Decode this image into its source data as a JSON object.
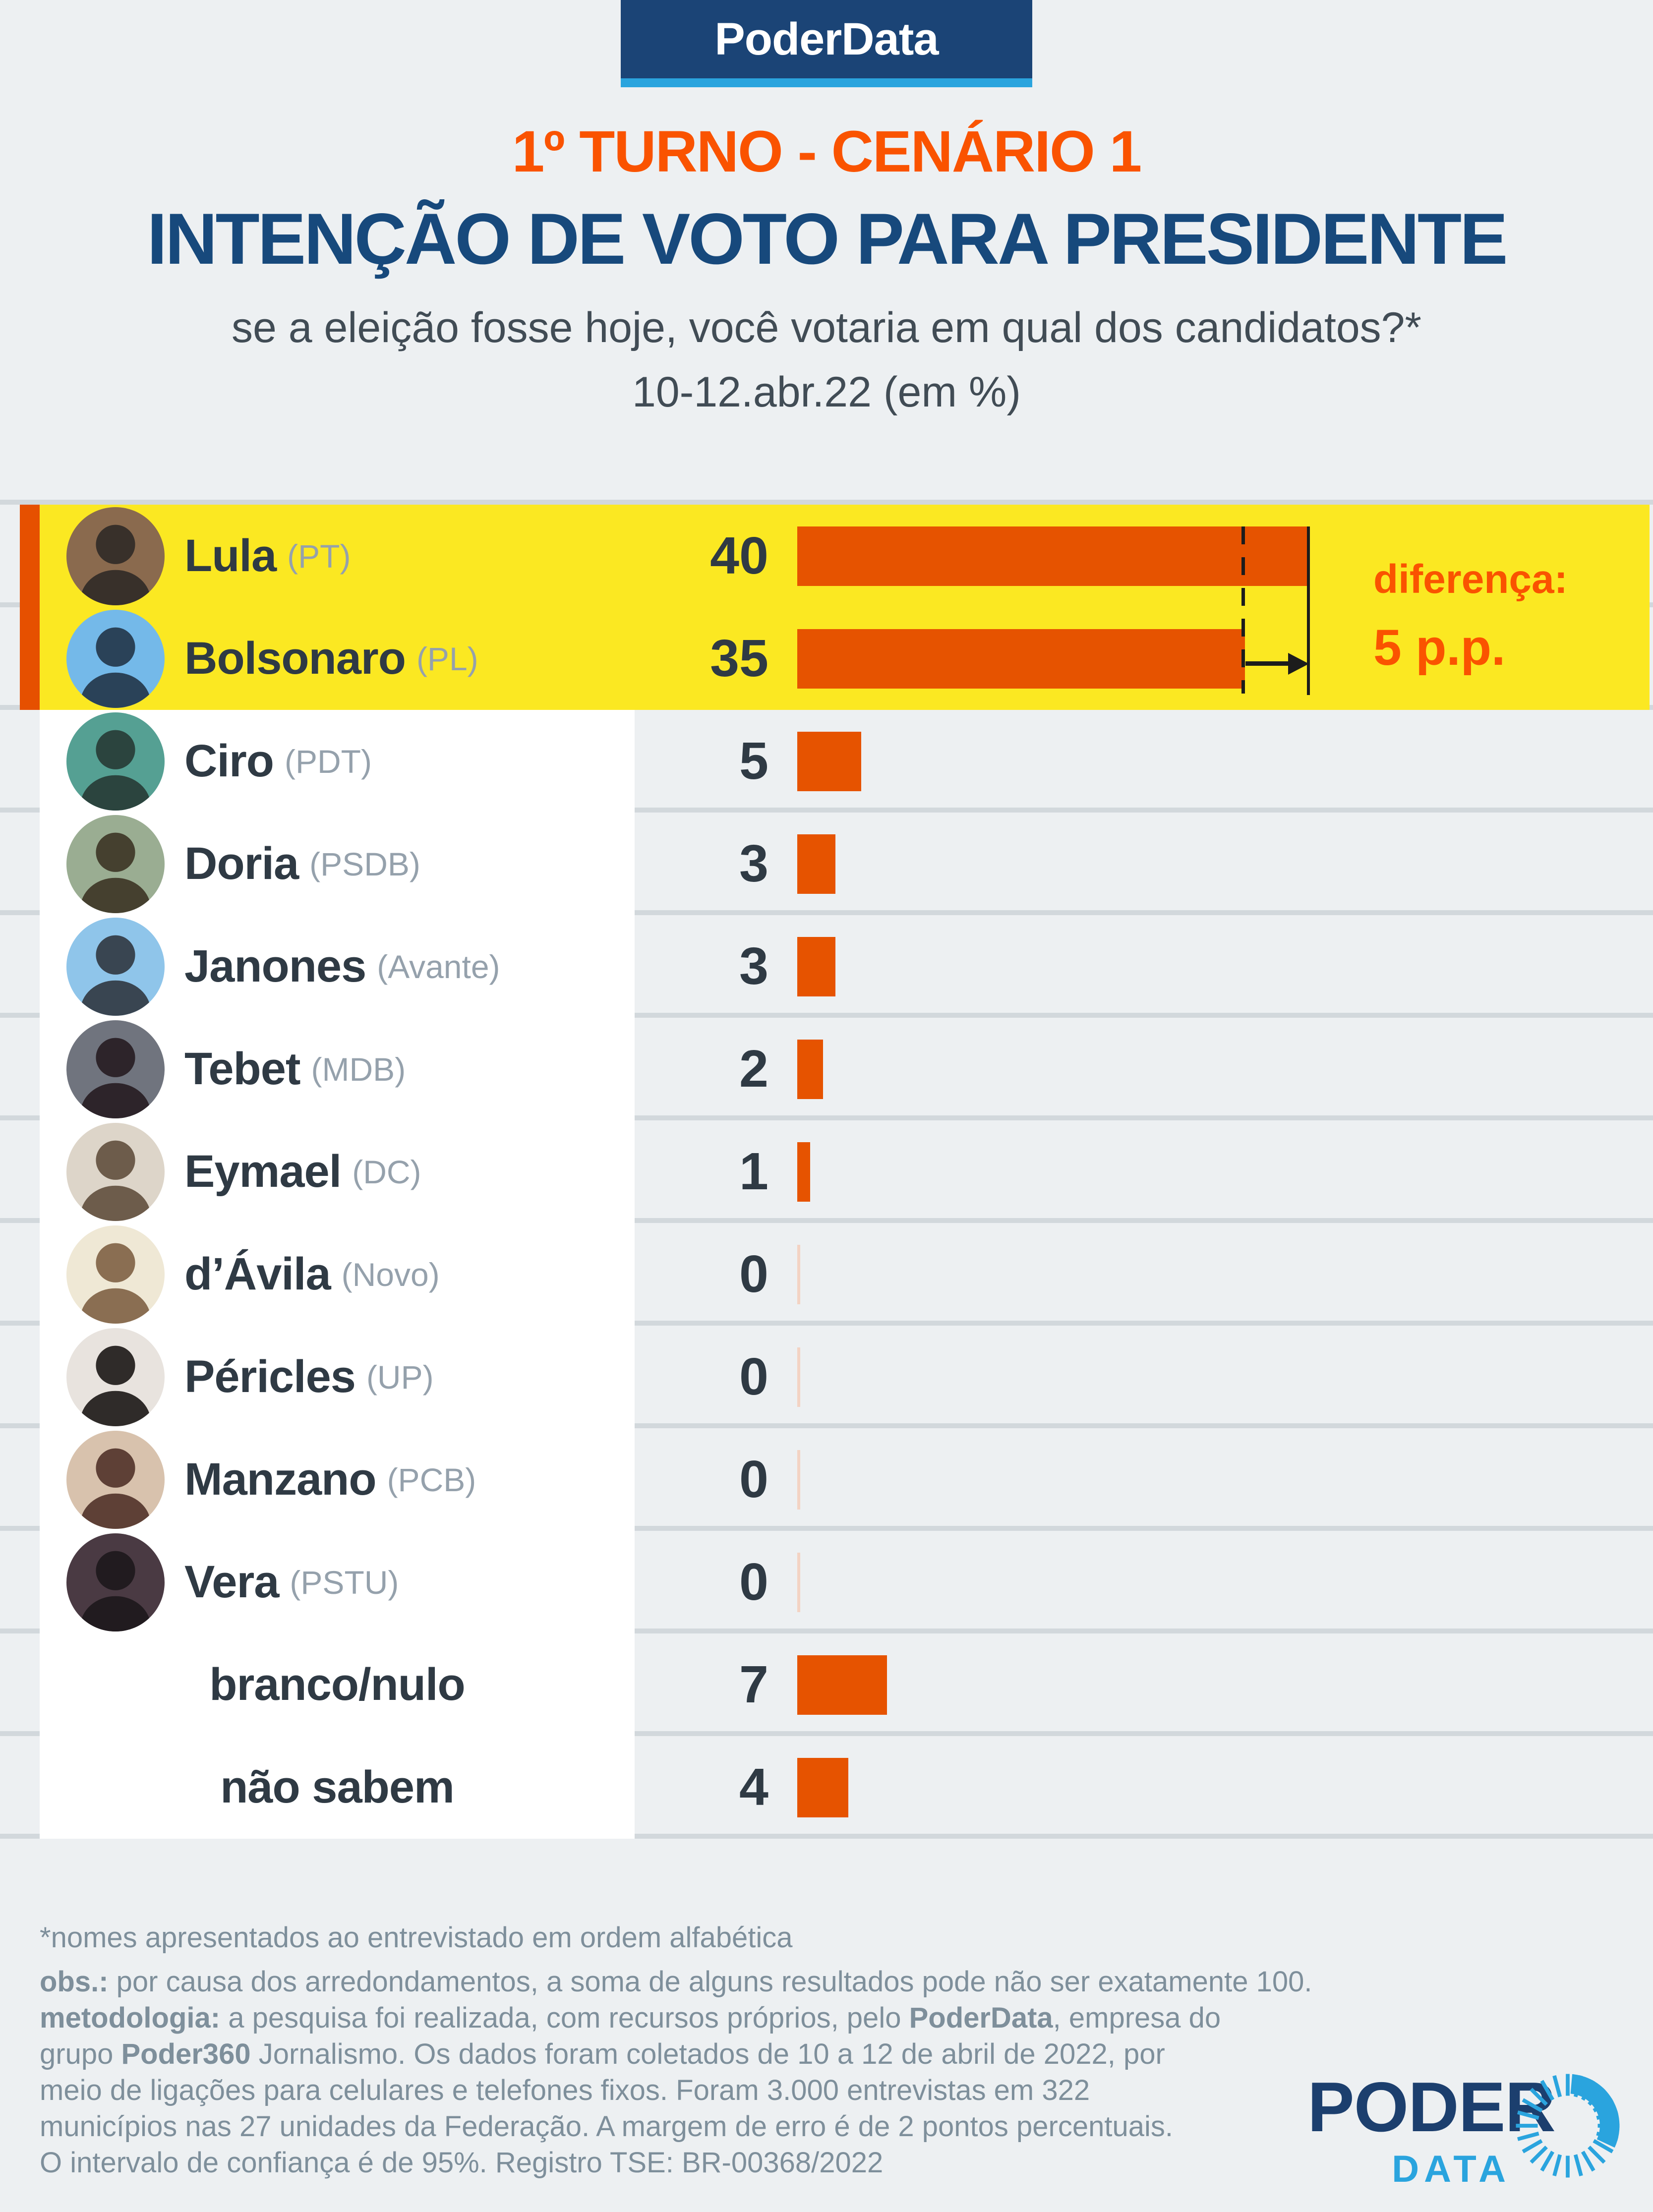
{
  "header": {
    "brand": "PoderData",
    "scenario": "1º TURNO - CENÁRIO 1",
    "title": "INTENÇÃO DE VOTO PARA PRESIDENTE",
    "question": "se a eleição fosse hoje, você votaria em qual dos candidatos?*",
    "period": "10-12.abr.22 (em %)"
  },
  "colors": {
    "banner_navy": "#1b4476",
    "banner_light_blue": "#2aa4de",
    "accent_orange": "#fa5300",
    "bar_orange": "#e65300",
    "highlight_yellow": "#fbe822",
    "title_navy": "#17497c",
    "page_background": "#edf0f2",
    "divider_gray": "#d2d8dc"
  },
  "chart_data": {
    "type": "bar",
    "orientation": "horizontal",
    "title": "INTENÇÃO DE VOTO PARA PRESIDENTE",
    "subtitle": "1º TURNO - CENÁRIO 1",
    "question": "se a eleição fosse hoje, você votaria em qual dos candidatos?*",
    "period": "10-12.abr.22",
    "unit": "%",
    "xlim": [
      0,
      40
    ],
    "categories": [
      "Lula",
      "Bolsonaro",
      "Ciro",
      "Doria",
      "Janones",
      "Tebet",
      "Eymael",
      "d’Ávila",
      "Péricles",
      "Manzano",
      "Vera",
      "branco/nulo",
      "não sabem"
    ],
    "values": [
      40,
      35,
      5,
      3,
      3,
      2,
      1,
      0,
      0,
      0,
      0,
      7,
      4
    ],
    "annotation": {
      "label": "diferença:",
      "value": "5 p.p.",
      "between": [
        "Lula",
        "Bolsonaro"
      ]
    },
    "rows": [
      {
        "name": "Lula",
        "party": "(PT)",
        "value": 40,
        "highlight": true,
        "avatar": {
          "bg": "#8a6a4e",
          "fg": "#38302a"
        }
      },
      {
        "name": "Bolsonaro",
        "party": "(PL)",
        "value": 35,
        "highlight": true,
        "avatar": {
          "bg": "#74b9e9",
          "fg": "#2a4258"
        }
      },
      {
        "name": "Ciro",
        "party": "(PDT)",
        "value": 5,
        "avatar": {
          "bg": "#55a093",
          "fg": "#2b443e"
        }
      },
      {
        "name": "Doria",
        "party": "(PSDB)",
        "value": 3,
        "avatar": {
          "bg": "#9aad92",
          "fg": "#45402f"
        }
      },
      {
        "name": "Janones",
        "party": "(Avante)",
        "value": 3,
        "avatar": {
          "bg": "#8fc5ea",
          "fg": "#394551"
        }
      },
      {
        "name": "Tebet",
        "party": "(MDB)",
        "value": 2,
        "avatar": {
          "bg": "#70747e",
          "fg": "#2d242a"
        }
      },
      {
        "name": "Eymael",
        "party": "(DC)",
        "value": 1,
        "avatar": {
          "bg": "#ddd5c9",
          "fg": "#6d5c4b"
        }
      },
      {
        "name": "d’Ávila",
        "party": "(Novo)",
        "value": 0,
        "avatar": {
          "bg": "#efe8d5",
          "fg": "#8a6e52"
        }
      },
      {
        "name": "Péricles",
        "party": "(UP)",
        "value": 0,
        "avatar": {
          "bg": "#e8e3de",
          "fg": "#2f2b29"
        }
      },
      {
        "name": "Manzano",
        "party": "(PCB)",
        "value": 0,
        "avatar": {
          "bg": "#d8c2ad",
          "fg": "#5e4036"
        }
      },
      {
        "name": "Vera",
        "party": "(PSTU)",
        "value": 0,
        "avatar": {
          "bg": "#4a3a43",
          "fg": "#211b1f"
        }
      },
      {
        "name": "branco/nulo",
        "party": "",
        "value": 7,
        "centered": true
      },
      {
        "name": "não sabem",
        "party": "",
        "value": 4,
        "centered": true
      }
    ]
  },
  "footer": {
    "lines": [
      [
        {
          "t": "*nomes apresentados ao entrevistado em ordem alfabética",
          "b": false
        }
      ],
      [
        {
          "t": "obs.:",
          "b": true
        },
        {
          "t": " por causa dos arredondamentos, a soma de alguns resultados pode não ser exatamente 100.",
          "b": false
        }
      ],
      [
        {
          "t": "metodologia:",
          "b": true
        },
        {
          "t": " a pesquisa foi realizada, com recursos próprios, pelo ",
          "b": false
        },
        {
          "t": "PoderData",
          "b": true
        },
        {
          "t": ", empresa do",
          "b": false
        }
      ],
      [
        {
          "t": "grupo ",
          "b": false
        },
        {
          "t": "Poder360",
          "b": true
        },
        {
          "t": " Jornalismo. Os dados foram coletados de 10 a 12 de abril de 2022, por",
          "b": false
        }
      ],
      [
        {
          "t": "meio de ligações para celulares e telefones fixos. Foram 3.000 entrevistas em 322",
          "b": false
        }
      ],
      [
        {
          "t": "municípios nas 27 unidades da Federação. A margem de erro é de 2 pontos percentuais.",
          "b": false
        }
      ],
      [
        {
          "t": "O intervalo de confiança é de 95%. Registro TSE: BR-00368/2022",
          "b": false
        }
      ]
    ]
  },
  "logo": {
    "top": "PODER",
    "bottom": "DATA"
  }
}
